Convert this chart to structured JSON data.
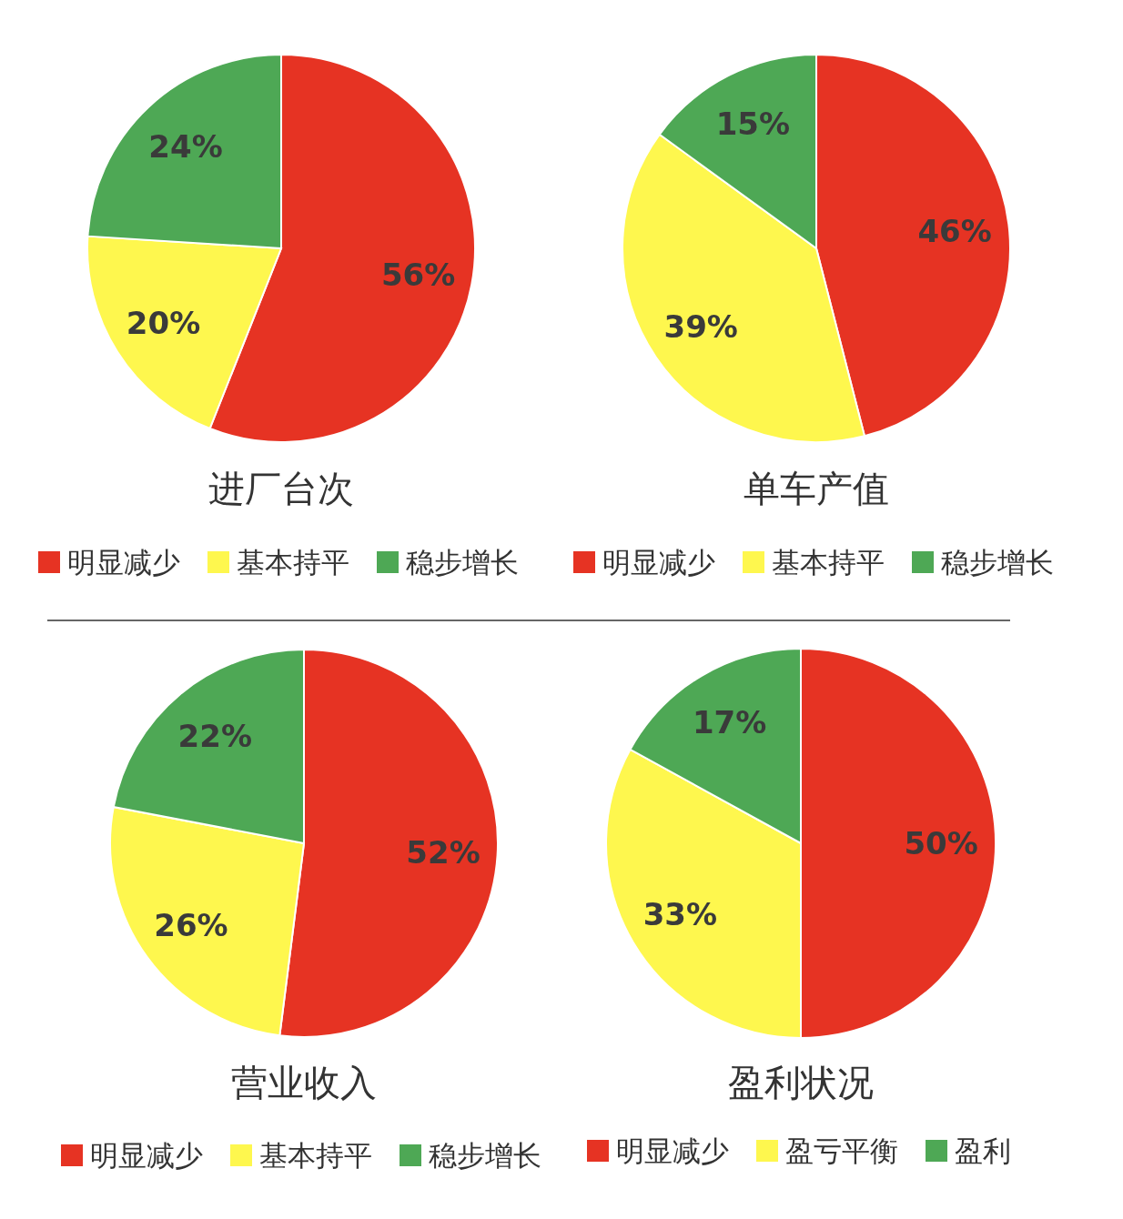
{
  "chart_data": [
    {
      "type": "pie",
      "title": "进厂台次",
      "categories": [
        "明显减少",
        "基本持平",
        "稳步增长"
      ],
      "values": [
        56,
        20,
        24
      ],
      "value_labels": [
        "56%",
        "20%",
        "24%"
      ],
      "colors": [
        "#e63323",
        "#fef74e",
        "#4ea855"
      ],
      "legend": "bottom"
    },
    {
      "type": "pie",
      "title": "单车产值",
      "categories": [
        "明显减少",
        "基本持平",
        "稳步增长"
      ],
      "values": [
        46,
        39,
        15
      ],
      "value_labels": [
        "46%",
        "39%",
        "15%"
      ],
      "colors": [
        "#e63323",
        "#fef74e",
        "#4ea855"
      ],
      "legend": "bottom"
    },
    {
      "type": "pie",
      "title": "营业收入",
      "categories": [
        "明显减少",
        "基本持平",
        "稳步增长"
      ],
      "values": [
        52,
        26,
        22
      ],
      "value_labels": [
        "52%",
        "26%",
        "22%"
      ],
      "colors": [
        "#e63323",
        "#fef74e",
        "#4ea855"
      ],
      "legend": "bottom"
    },
    {
      "type": "pie",
      "title": "盈利状况",
      "categories": [
        "明显减少",
        "盈亏平衡",
        "盈利"
      ],
      "values": [
        50,
        33,
        17
      ],
      "value_labels": [
        "50%",
        "33%",
        "17%"
      ],
      "colors": [
        "#e63323",
        "#fef74e",
        "#4ea855"
      ],
      "legend": "bottom"
    }
  ]
}
